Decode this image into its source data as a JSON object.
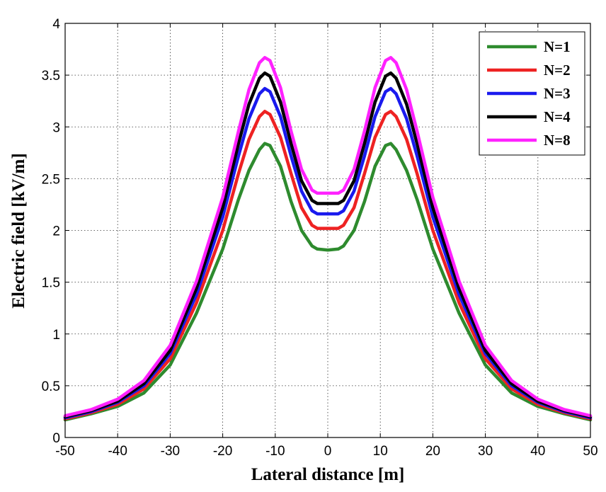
{
  "chart_data": {
    "type": "line",
    "xlabel": "Lateral distance [m]",
    "ylabel": "Electric field [kV/m]",
    "xlim": [
      -50,
      50
    ],
    "ylim": [
      0,
      4
    ],
    "xticks": [
      "-50",
      "-40",
      "-30",
      "-20",
      "-10",
      "0",
      "10",
      "20",
      "30",
      "40",
      "50"
    ],
    "yticks": [
      "0",
      "0.5",
      "1",
      "1.5",
      "2",
      "2.5",
      "3",
      "3.5",
      "4"
    ],
    "grid": true,
    "legend_position": "top-right",
    "x": [
      -50,
      -45,
      -40,
      -35,
      -30,
      -25,
      -20,
      -17,
      -15,
      -13,
      -12,
      -11,
      -9,
      -7,
      -5,
      -3,
      -2,
      0,
      2,
      3,
      5,
      7,
      9,
      11,
      12,
      13,
      15,
      17,
      20,
      25,
      30,
      35,
      40,
      45,
      50
    ],
    "series": [
      {
        "name": "N=1",
        "color": "#2e8b2e",
        "values": [
          0.17,
          0.23,
          0.3,
          0.43,
          0.7,
          1.2,
          1.82,
          2.3,
          2.58,
          2.78,
          2.84,
          2.82,
          2.62,
          2.28,
          2.0,
          1.85,
          1.82,
          1.81,
          1.82,
          1.85,
          2.0,
          2.28,
          2.62,
          2.82,
          2.84,
          2.78,
          2.58,
          2.3,
          1.82,
          1.2,
          0.7,
          0.43,
          0.3,
          0.23,
          0.17
        ]
      },
      {
        "name": "N=2",
        "color": "#ee2222",
        "values": [
          0.18,
          0.24,
          0.32,
          0.47,
          0.76,
          1.3,
          2.0,
          2.55,
          2.88,
          3.1,
          3.15,
          3.12,
          2.9,
          2.55,
          2.22,
          2.05,
          2.02,
          2.02,
          2.02,
          2.05,
          2.22,
          2.55,
          2.9,
          3.12,
          3.15,
          3.1,
          2.88,
          2.55,
          2.0,
          1.3,
          0.76,
          0.47,
          0.32,
          0.24,
          0.18
        ]
      },
      {
        "name": "N=3",
        "color": "#1a1aee",
        "values": [
          0.19,
          0.25,
          0.34,
          0.5,
          0.81,
          1.38,
          2.13,
          2.72,
          3.08,
          3.32,
          3.37,
          3.34,
          3.1,
          2.72,
          2.38,
          2.19,
          2.16,
          2.16,
          2.16,
          2.19,
          2.38,
          2.72,
          3.1,
          3.34,
          3.37,
          3.32,
          3.08,
          2.72,
          2.13,
          1.38,
          0.81,
          0.5,
          0.34,
          0.25,
          0.19
        ]
      },
      {
        "name": "N=4",
        "color": "#000000",
        "values": [
          0.2,
          0.26,
          0.35,
          0.52,
          0.84,
          1.44,
          2.22,
          2.84,
          3.22,
          3.47,
          3.52,
          3.49,
          3.24,
          2.84,
          2.48,
          2.29,
          2.26,
          2.26,
          2.26,
          2.29,
          2.48,
          2.84,
          3.24,
          3.49,
          3.52,
          3.47,
          3.22,
          2.84,
          2.22,
          1.44,
          0.84,
          0.52,
          0.35,
          0.26,
          0.2
        ]
      },
      {
        "name": "N=8",
        "color": "#ff22ff",
        "values": [
          0.21,
          0.27,
          0.37,
          0.55,
          0.89,
          1.51,
          2.32,
          2.96,
          3.36,
          3.62,
          3.67,
          3.64,
          3.38,
          2.96,
          2.59,
          2.39,
          2.36,
          2.36,
          2.36,
          2.39,
          2.59,
          2.96,
          3.38,
          3.64,
          3.67,
          3.62,
          3.36,
          2.96,
          2.32,
          1.51,
          0.89,
          0.55,
          0.37,
          0.27,
          0.21
        ]
      }
    ]
  }
}
